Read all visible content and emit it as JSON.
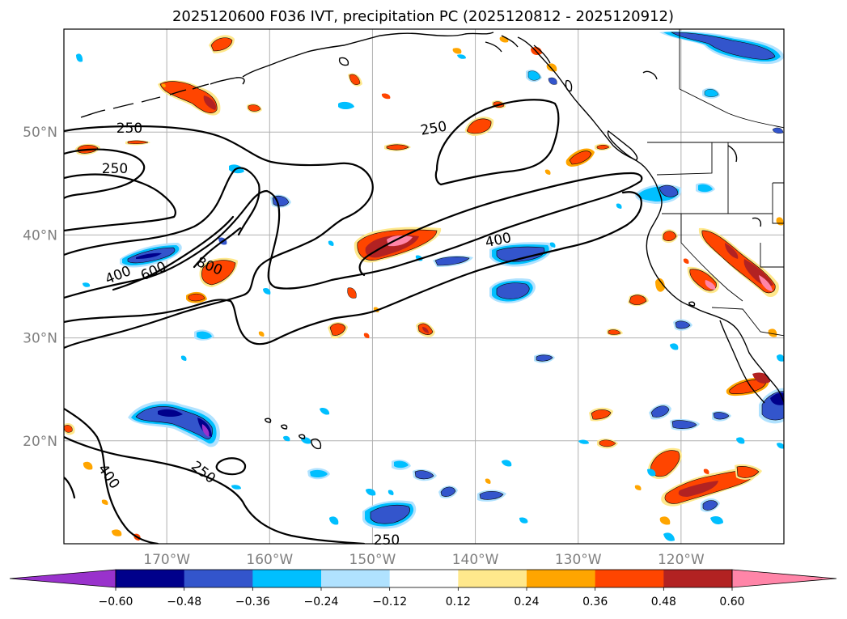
{
  "title": "2025120600 F036 IVT, precipitation PC (2025120812 - 2025120912)",
  "map": {
    "lon_range": [
      -180,
      -110
    ],
    "lat_range": [
      10,
      60
    ],
    "lat_ticks": [
      {
        "lat": 50,
        "label": "50°N"
      },
      {
        "lat": 40,
        "label": "40°N"
      },
      {
        "lat": 30,
        "label": "30°N"
      },
      {
        "lat": 20,
        "label": "20°N"
      }
    ],
    "lon_ticks": [
      {
        "lon": -170,
        "label": "170°W"
      },
      {
        "lon": -160,
        "label": "160°W"
      },
      {
        "lon": -150,
        "label": "150°W"
      },
      {
        "lon": -140,
        "label": "140°W"
      },
      {
        "lon": -130,
        "label": "130°W"
      },
      {
        "lon": -120,
        "label": "120°W"
      }
    ],
    "ivt_contour_labels": [
      "250",
      "250",
      "250",
      "400",
      "600",
      "800",
      "400",
      "400",
      "250",
      "250"
    ]
  },
  "colorbar": {
    "colors": [
      "#9932cc",
      "#00008b",
      "#3355cc",
      "#00bfff",
      "#b0e2ff",
      "#ffffff",
      "#ffe88c",
      "#ffa500",
      "#ff4500",
      "#b22222",
      "#ff85a8"
    ],
    "tick_labels": [
      "−0.60",
      "−0.48",
      "−0.36",
      "−0.24",
      "−0.12",
      "0.12",
      "0.24",
      "0.36",
      "0.48",
      "0.60"
    ]
  },
  "palette": {
    "land_line": "#000000",
    "grid": "#b0b0b0",
    "pos_light": "#ffe88c",
    "pos_mid": "#ffa500",
    "pos_strong": "#ff4500",
    "pos_very": "#b22222",
    "pos_max": "#ff85a8",
    "neg_light": "#b0e2ff",
    "neg_mid": "#00bfff",
    "neg_strong": "#3355cc",
    "neg_very": "#00008b",
    "neg_max": "#9932cc"
  }
}
